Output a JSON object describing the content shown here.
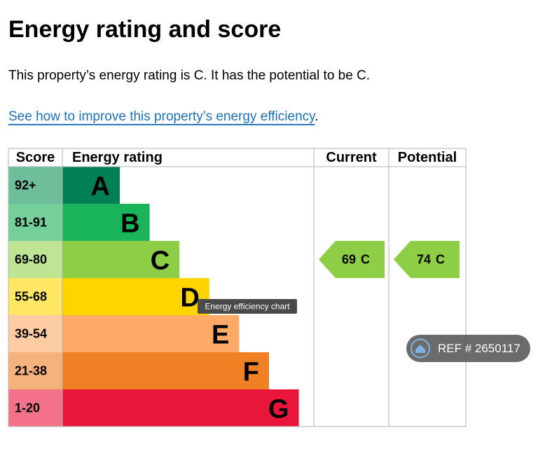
{
  "heading": "Energy rating and score",
  "summary": "This property’s energy rating is C. It has the potential to be C.",
  "link": "See how to improve this property’s energy efficiency",
  "link_suffix": ".",
  "table": {
    "headers": {
      "score": "Score",
      "rating": "Energy rating",
      "current": "Current",
      "potential": "Potential"
    },
    "rows": [
      {
        "score": "92+",
        "rating": "A",
        "color": "#008054",
        "light": "#6dbf9b"
      },
      {
        "score": "81-91",
        "rating": "B",
        "color": "#19b459",
        "light": "#76d09a"
      },
      {
        "score": "69-80",
        "rating": "C",
        "color": "#8dce46",
        "light": "#bfe494"
      },
      {
        "score": "55-68",
        "rating": "D",
        "color": "#ffd500",
        "light": "#ffe766"
      },
      {
        "score": "39-54",
        "rating": "E",
        "color": "#fcaa65",
        "light": "#fdcca3"
      },
      {
        "score": "21-38",
        "rating": "F",
        "color": "#ef8023",
        "light": "#f5b37b"
      },
      {
        "score": "1-20",
        "rating": "G",
        "color": "#e9153b",
        "light": "#f27389"
      }
    ],
    "current": {
      "score": 69,
      "rating": "C"
    },
    "potential": {
      "score": 74,
      "rating": "C"
    }
  },
  "tooltip": "Energy efficiency chart",
  "watermark": "REF # 2650117"
}
